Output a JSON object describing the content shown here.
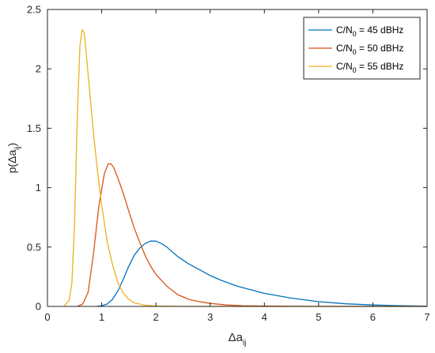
{
  "chart_data": {
    "type": "line",
    "title": "",
    "xlabel": {
      "main": "Δa",
      "sub": "ij"
    },
    "ylabel": {
      "pre": "p(",
      "main": "Δa",
      "sub": "ij",
      "post": ")"
    },
    "xlim": [
      0,
      7
    ],
    "ylim": [
      0,
      2.5
    ],
    "xticks": [
      0,
      1,
      2,
      3,
      4,
      5,
      6,
      7
    ],
    "xtick_labels": [
      "0",
      "1",
      "2",
      "3",
      "4",
      "5",
      "6",
      "7"
    ],
    "yticks": [
      0,
      0.5,
      1,
      1.5,
      2,
      2.5
    ],
    "ytick_labels": [
      "0",
      "0.5",
      "1",
      "1.5",
      "2",
      "2.5"
    ],
    "grid": false,
    "legend_position": "top-right",
    "series": [
      {
        "name": {
          "pre": "C/N",
          "sub": "0",
          "post": " = 45 dBHz"
        },
        "color": "#0072BD",
        "x": [
          0.9,
          1.0,
          1.1,
          1.2,
          1.3,
          1.4,
          1.5,
          1.6,
          1.7,
          1.8,
          1.9,
          2.0,
          2.1,
          2.2,
          2.3,
          2.4,
          2.6,
          2.8,
          3.0,
          3.2,
          3.5,
          4.0,
          4.5,
          5.0,
          5.5,
          6.0,
          6.5,
          7.0
        ],
        "y": [
          0.0,
          0.005,
          0.02,
          0.06,
          0.13,
          0.23,
          0.34,
          0.43,
          0.49,
          0.53,
          0.55,
          0.55,
          0.53,
          0.5,
          0.46,
          0.42,
          0.36,
          0.31,
          0.26,
          0.22,
          0.17,
          0.11,
          0.07,
          0.04,
          0.022,
          0.012,
          0.006,
          0.002
        ]
      },
      {
        "name": {
          "pre": "C/N",
          "sub": "0",
          "post": " = 50 dBHz"
        },
        "color": "#D95319",
        "x": [
          0.55,
          0.65,
          0.75,
          0.85,
          0.95,
          1.05,
          1.12,
          1.17,
          1.22,
          1.3,
          1.4,
          1.5,
          1.6,
          1.7,
          1.8,
          1.9,
          2.0,
          2.2,
          2.4,
          2.6,
          2.8,
          3.0,
          3.3,
          3.6,
          4.0,
          4.5,
          5.0,
          6.0,
          7.0
        ],
        "y": [
          0.0,
          0.02,
          0.12,
          0.45,
          0.85,
          1.12,
          1.2,
          1.2,
          1.17,
          1.08,
          0.95,
          0.8,
          0.66,
          0.54,
          0.43,
          0.34,
          0.27,
          0.17,
          0.1,
          0.06,
          0.04,
          0.025,
          0.012,
          0.006,
          0.003,
          0.001,
          0.0,
          0.0,
          0.0
        ]
      },
      {
        "name": {
          "pre": "C/N",
          "sub": "0",
          "post": " = 55 dBHz"
        },
        "color": "#EDB120",
        "x": [
          0.3,
          0.4,
          0.45,
          0.5,
          0.55,
          0.6,
          0.64,
          0.68,
          0.72,
          0.78,
          0.85,
          0.92,
          1.0,
          1.1,
          1.2,
          1.3,
          1.4,
          1.5,
          1.6,
          1.8,
          2.0,
          2.5,
          3.0,
          4.0,
          5.0,
          6.0,
          7.0
        ],
        "y": [
          0.0,
          0.05,
          0.2,
          0.7,
          1.6,
          2.2,
          2.33,
          2.3,
          2.1,
          1.8,
          1.45,
          1.15,
          0.85,
          0.55,
          0.35,
          0.2,
          0.11,
          0.06,
          0.03,
          0.01,
          0.003,
          0.0,
          0.0,
          0.0,
          0.0,
          0.0,
          0.0
        ]
      }
    ]
  }
}
